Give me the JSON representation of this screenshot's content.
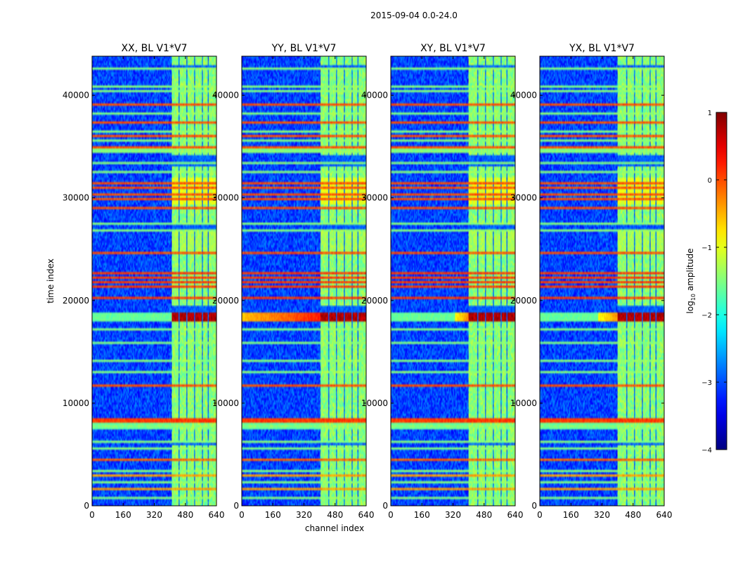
{
  "chart_data": {
    "type": "heatmap",
    "suptitle": "2015-09-04 0.0-24.0",
    "xlabel": "channel index",
    "ylabel": "time index",
    "xlim": [
      0,
      640
    ],
    "ylim": [
      0,
      43800
    ],
    "xticks": [
      0,
      160,
      320,
      480,
      640
    ],
    "yticks": [
      0,
      10000,
      20000,
      30000,
      40000
    ],
    "panels": [
      {
        "title": "XX, BL V1*V7",
        "signal_start": 410,
        "flare_start": 410,
        "flare_strength": 0.45,
        "left_band": 0.55
      },
      {
        "title": "YY, BL V1*V7",
        "signal_start": 405,
        "flare_start": 0,
        "flare_strength": 0.95,
        "left_band": 0.6
      },
      {
        "title": "XY, BL V1*V7",
        "signal_start": 400,
        "flare_start": 330,
        "flare_strength": 0.7,
        "left_band": 0.5
      },
      {
        "title": "YX, BL V1*V7",
        "signal_start": 400,
        "flare_start": 300,
        "flare_strength": 0.7,
        "left_band": 0.5
      }
    ],
    "signal_channels": [
      410,
      640
    ],
    "gap_channels": [
      447,
      487,
      526,
      567,
      597
    ],
    "strong_bands": [
      {
        "t0": 17900,
        "t1": 18900,
        "level": 0.97
      },
      {
        "t0": 29400,
        "t1": 32000,
        "level": 0.62
      },
      {
        "t0": 24800,
        "t1": 26700,
        "level": 0.55
      },
      {
        "t0": 36800,
        "t1": 39500,
        "level": 0.45
      },
      {
        "t0": 9800,
        "t1": 11500,
        "level": 0.45
      }
    ],
    "horizontal_lines": [
      {
        "t": 700,
        "level": 0.5
      },
      {
        "t": 1600,
        "level": 0.72
      },
      {
        "t": 2300,
        "level": 0.5
      },
      {
        "t": 2900,
        "level": 0.72
      },
      {
        "t": 3500,
        "level": 0.5
      },
      {
        "t": 4400,
        "level": 0.78
      },
      {
        "t": 5500,
        "level": 0.5
      },
      {
        "t": 6300,
        "level": 0.5
      },
      {
        "t": 7700,
        "level": 0.5
      },
      {
        "t": 8200,
        "level": 0.82
      },
      {
        "t": 8500,
        "level": 0.82
      },
      {
        "t": 11800,
        "level": 0.8
      },
      {
        "t": 13000,
        "level": 0.5
      },
      {
        "t": 14200,
        "level": 0.5
      },
      {
        "t": 15800,
        "level": 0.5
      },
      {
        "t": 17100,
        "level": 0.5
      },
      {
        "t": 20200,
        "level": 0.82
      },
      {
        "t": 21400,
        "level": 0.82
      },
      {
        "t": 21800,
        "level": 0.82
      },
      {
        "t": 22300,
        "level": 0.82
      },
      {
        "t": 22700,
        "level": 0.82
      },
      {
        "t": 24700,
        "level": 0.8
      },
      {
        "t": 26800,
        "level": 0.5
      },
      {
        "t": 27400,
        "level": 0.5
      },
      {
        "t": 29000,
        "level": 0.8
      },
      {
        "t": 29800,
        "level": 0.8
      },
      {
        "t": 30300,
        "level": 0.8
      },
      {
        "t": 31000,
        "level": 0.8
      },
      {
        "t": 31500,
        "level": 0.8
      },
      {
        "t": 32500,
        "level": 0.5
      },
      {
        "t": 33500,
        "level": 0.5
      },
      {
        "t": 34500,
        "level": 0.5
      },
      {
        "t": 35000,
        "level": 0.8
      },
      {
        "t": 35500,
        "level": 0.5
      },
      {
        "t": 36000,
        "level": 0.8
      },
      {
        "t": 36500,
        "level": 0.5
      },
      {
        "t": 37300,
        "level": 0.8
      },
      {
        "t": 38300,
        "level": 0.5
      },
      {
        "t": 39000,
        "level": 0.8
      },
      {
        "t": 40500,
        "level": 0.5
      },
      {
        "t": 40800,
        "level": 0.5
      },
      {
        "t": 42500,
        "level": 0.5
      }
    ],
    "broad_bands": [
      {
        "t0": 7500,
        "t1": 8050,
        "level": 0.5
      },
      {
        "t0": 34300,
        "t1": 34900,
        "level": 0.52
      }
    ],
    "colorbar": {
      "label_prefix": "log",
      "label_sub": "10",
      "label_suffix": " amplitude",
      "range": [
        -4,
        1
      ],
      "ticks": [
        "1",
        "0",
        "−1",
        "−2",
        "−3",
        "−4"
      ]
    }
  }
}
